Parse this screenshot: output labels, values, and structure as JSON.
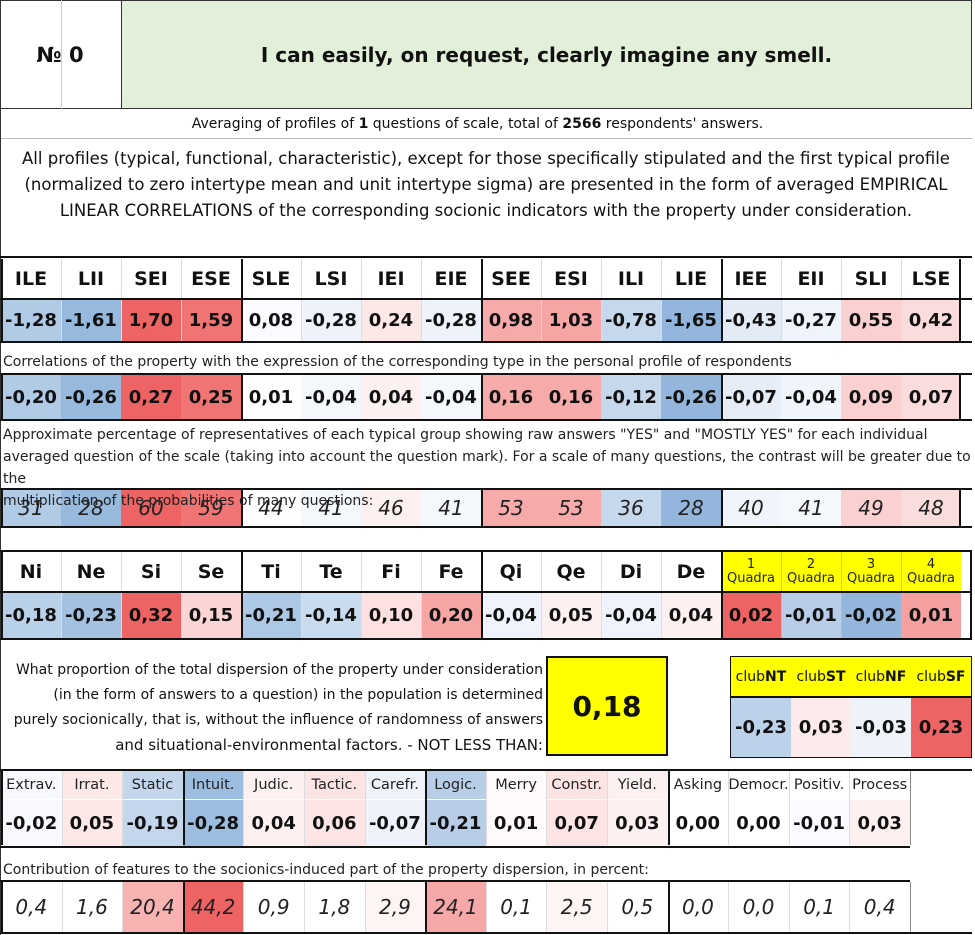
{
  "header": {
    "number_label": "№ 0",
    "question": "I can easily, on request, clearly imagine any smell."
  },
  "summary": {
    "part1": "Averaging of profiles of ",
    "questions_count": "1",
    "part2": " questions of scale, total of ",
    "respondents_count": "2566",
    "part3": " respondents' answers."
  },
  "description": [
    "All profiles (typical, functional, characteristic), except for those specifically stipulated and the first typical profile",
    "(normalized to zero intertype mean and unit intertype sigma) are presented in the form of averaged EMPIRICAL",
    "LINEAR CORRELATIONS of the corresponding socionic indicators with the property under consideration."
  ],
  "types": {
    "labels": [
      "ILE",
      "LII",
      "SEI",
      "ESE",
      "SLE",
      "LSI",
      "IEI",
      "EIE",
      "SEE",
      "ESI",
      "ILI",
      "LIE",
      "IEE",
      "EII",
      "SLI",
      "LSE"
    ],
    "values": [
      "-1,28",
      "-1,61",
      "1,70",
      "1,59",
      "0,08",
      "-0,28",
      "0,24",
      "-0,28",
      "0,98",
      "1,03",
      "-0,78",
      "-1,65",
      "-0,43",
      "-0,27",
      "0,55",
      "0,42"
    ],
    "colors": [
      "#b1cbe6",
      "#97b9de",
      "#ee6363",
      "#f07474",
      "#fbfbff",
      "#eef2fa",
      "#fde8e8",
      "#eef2fa",
      "#f7aaaa",
      "#f6a4a4",
      "#c6d8ec",
      "#94b6dd",
      "#e3ebf6",
      "#eff3fb",
      "#fad0d0",
      "#fbdcdc"
    ]
  },
  "correlations": {
    "caption": "Correlations of the property with the expression of the corresponding type in the personal profile of respondents",
    "values": [
      "-0,20",
      "-0,26",
      "0,27",
      "0,25",
      "0,01",
      "-0,04",
      "0,04",
      "-0,04",
      "0,16",
      "0,16",
      "-0,12",
      "-0,26",
      "-0,07",
      "-0,04",
      "0,09",
      "0,07"
    ],
    "colors": [
      "#b1cbe6",
      "#97b9de",
      "#ee6363",
      "#f07474",
      "#fefeff",
      "#f4f7fc",
      "#fdf0f0",
      "#f4f7fc",
      "#f7aaaa",
      "#f7aaaa",
      "#c6d8ec",
      "#94b6dd",
      "#e6edf7",
      "#f0f4fb",
      "#fad0d0",
      "#fbdcdc"
    ]
  },
  "percentages": {
    "caption": [
      "Approximate percentage of representatives of each typical group showing raw answers \"YES\" and \"MOSTLY YES\" for each individual",
      "averaged question of the scale (taking into account the question mark). For a scale of many questions, the contrast will be greater due to the",
      "multiplication of the probabilities of many questions:"
    ],
    "values": [
      "31",
      "28",
      "60",
      "59",
      "44",
      "41",
      "46",
      "41",
      "53",
      "53",
      "36",
      "28",
      "40",
      "41",
      "49",
      "48"
    ],
    "colors": [
      "#b1cbe6",
      "#97b9de",
      "#ee6363",
      "#f07474",
      "#fefeff",
      "#f4f7fc",
      "#fdf0f0",
      "#f4f7fc",
      "#f7aaaa",
      "#f7aaaa",
      "#c6d8ec",
      "#94b6dd",
      "#f1f5fb",
      "#f4f7fc",
      "#fad0d0",
      "#fbdcdc"
    ]
  },
  "functions": {
    "labels": [
      "Ni",
      "Ne",
      "Si",
      "Se",
      "Ti",
      "Te",
      "Fi",
      "Fe",
      "Qi",
      "Qe",
      "Di",
      "De"
    ],
    "values": [
      "-0,18",
      "-0,23",
      "0,32",
      "0,15",
      "-0,21",
      "-0,14",
      "0,10",
      "0,20",
      "-0,04",
      "0,05",
      "-0,04",
      "0,04"
    ],
    "colors": [
      "#b8d0e8",
      "#a4c1e2",
      "#ee6363",
      "#fbd4d4",
      "#adc8e5",
      "#c9dbee",
      "#fde0e0",
      "#f6a4a4",
      "#eff3fb",
      "#fdf0f0",
      "#eff3fb",
      "#fdf0f0"
    ]
  },
  "quadras": {
    "numbers": [
      "1",
      "2",
      "3",
      "4"
    ],
    "word": "Quadra",
    "values": [
      "0,02",
      "-0,01",
      "-0,02",
      "0,01"
    ],
    "colors": [
      "#ee6363",
      "#b7cde8",
      "#94b6dd",
      "#f5a0a0"
    ],
    "header_color": "#ffff00"
  },
  "dispersion": {
    "lines": [
      "What proportion of the total dispersion of the property under consideration",
      "(in the form of answers to a question) in the population is determined",
      "purely socionically, that is, without the influence of randomness of answers",
      "and situational-environmental factors. - NOT LESS THAN:"
    ],
    "value": "0,18",
    "box_color": "#ffff00"
  },
  "clubs": {
    "prefix": "club",
    "suffixes": [
      "NT",
      "ST",
      "NF",
      "SF"
    ],
    "values": [
      "-0,23",
      "0,03",
      "-0,03",
      "0,23"
    ],
    "colors": [
      "#bcd2ea",
      "#fdeaea",
      "#eef3fa",
      "#ee6363"
    ]
  },
  "features": {
    "labels": [
      "Extrav.",
      "Irrat.",
      "Static",
      "Intuit.",
      "Judic.",
      "Tactic.",
      "Carefr.",
      "Logic.",
      "Merry",
      "Constr.",
      "Yield.",
      "Asking",
      "Democr.",
      "Positiv.",
      "Process"
    ],
    "values": [
      "-0,02",
      "0,05",
      "-0,19",
      "-0,28",
      "0,04",
      "0,06",
      "-0,07",
      "-0,21",
      "0,01",
      "0,07",
      "0,03",
      "0,00",
      "0,00",
      "-0,01",
      "0,03"
    ],
    "colors": [
      "#f8f9fd",
      "#fde8e8",
      "#c3d6ec",
      "#9dbde0",
      "#fdf0f0",
      "#fde4e4",
      "#eef2fa",
      "#b7cde8",
      "#fffafa",
      "#fde4e4",
      "#fdf0f0",
      "#ffffff",
      "#ffffff",
      "#fafbfe",
      "#fdf0f0"
    ]
  },
  "contribution": {
    "caption": "Contribution of features to the socionics-induced part of the property dispersion, in percent:",
    "values": [
      "0,4",
      "1,6",
      "20,4",
      "44,2",
      "0,9",
      "1,8",
      "2,9",
      "24,1",
      "0,1",
      "2,5",
      "0,5",
      "0,0",
      "0,0",
      "0,1",
      "0,4"
    ],
    "colors": [
      "#ffffff",
      "#ffffff",
      "#f7b2b2",
      "#ee6363",
      "#ffffff",
      "#ffffff",
      "#fdf4f4",
      "#f6a8a8",
      "#ffffff",
      "#fdf4f4",
      "#ffffff",
      "#ffffff",
      "#ffffff",
      "#ffffff",
      "#ffffff"
    ]
  }
}
